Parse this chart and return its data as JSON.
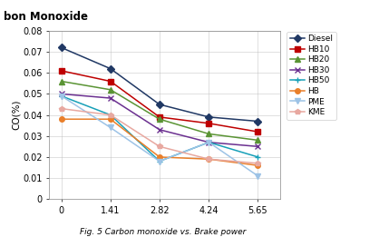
{
  "title": "bon Monoxide",
  "ylabel": "CO(%)",
  "caption": "Fig. 5 Carbon monoxide vs. Brake power",
  "x": [
    0,
    1.41,
    2.82,
    4.24,
    5.65
  ],
  "series": {
    "Diesel": [
      0.072,
      0.062,
      0.045,
      0.039,
      0.037
    ],
    "HB10": [
      0.061,
      0.056,
      0.039,
      0.036,
      0.032
    ],
    "HB20": [
      0.056,
      0.052,
      0.038,
      0.031,
      0.028
    ],
    "HB30": [
      0.05,
      0.048,
      0.033,
      0.027,
      0.025
    ],
    "HB50": [
      0.049,
      0.04,
      0.018,
      0.027,
      0.02
    ],
    "HB": [
      0.038,
      0.038,
      0.02,
      0.019,
      0.016
    ],
    "PME": [
      0.049,
      0.034,
      0.018,
      0.027,
      0.011
    ],
    "KME": [
      0.043,
      0.04,
      0.025,
      0.019,
      0.017
    ]
  },
  "colors": {
    "Diesel": "#203864",
    "HB10": "#BE0000",
    "HB20": "#5A9434",
    "HB30": "#6B3090",
    "HB50": "#17A0B8",
    "HB": "#E97F2A",
    "PME": "#9DC3E6",
    "KME": "#E8A8A0"
  },
  "markers": {
    "Diesel": "D",
    "HB10": "s",
    "HB20": "^",
    "HB30": "x",
    "HB50": "+",
    "HB": "o",
    "PME": "v",
    "KME": "p"
  },
  "ylim": [
    0,
    0.08
  ],
  "yticks": [
    0,
    0.01,
    0.02,
    0.03,
    0.04,
    0.05,
    0.06,
    0.07,
    0.08
  ],
  "xticks": [
    0,
    1.41,
    2.82,
    4.24,
    5.65
  ],
  "background_color": "#FFFFFF"
}
